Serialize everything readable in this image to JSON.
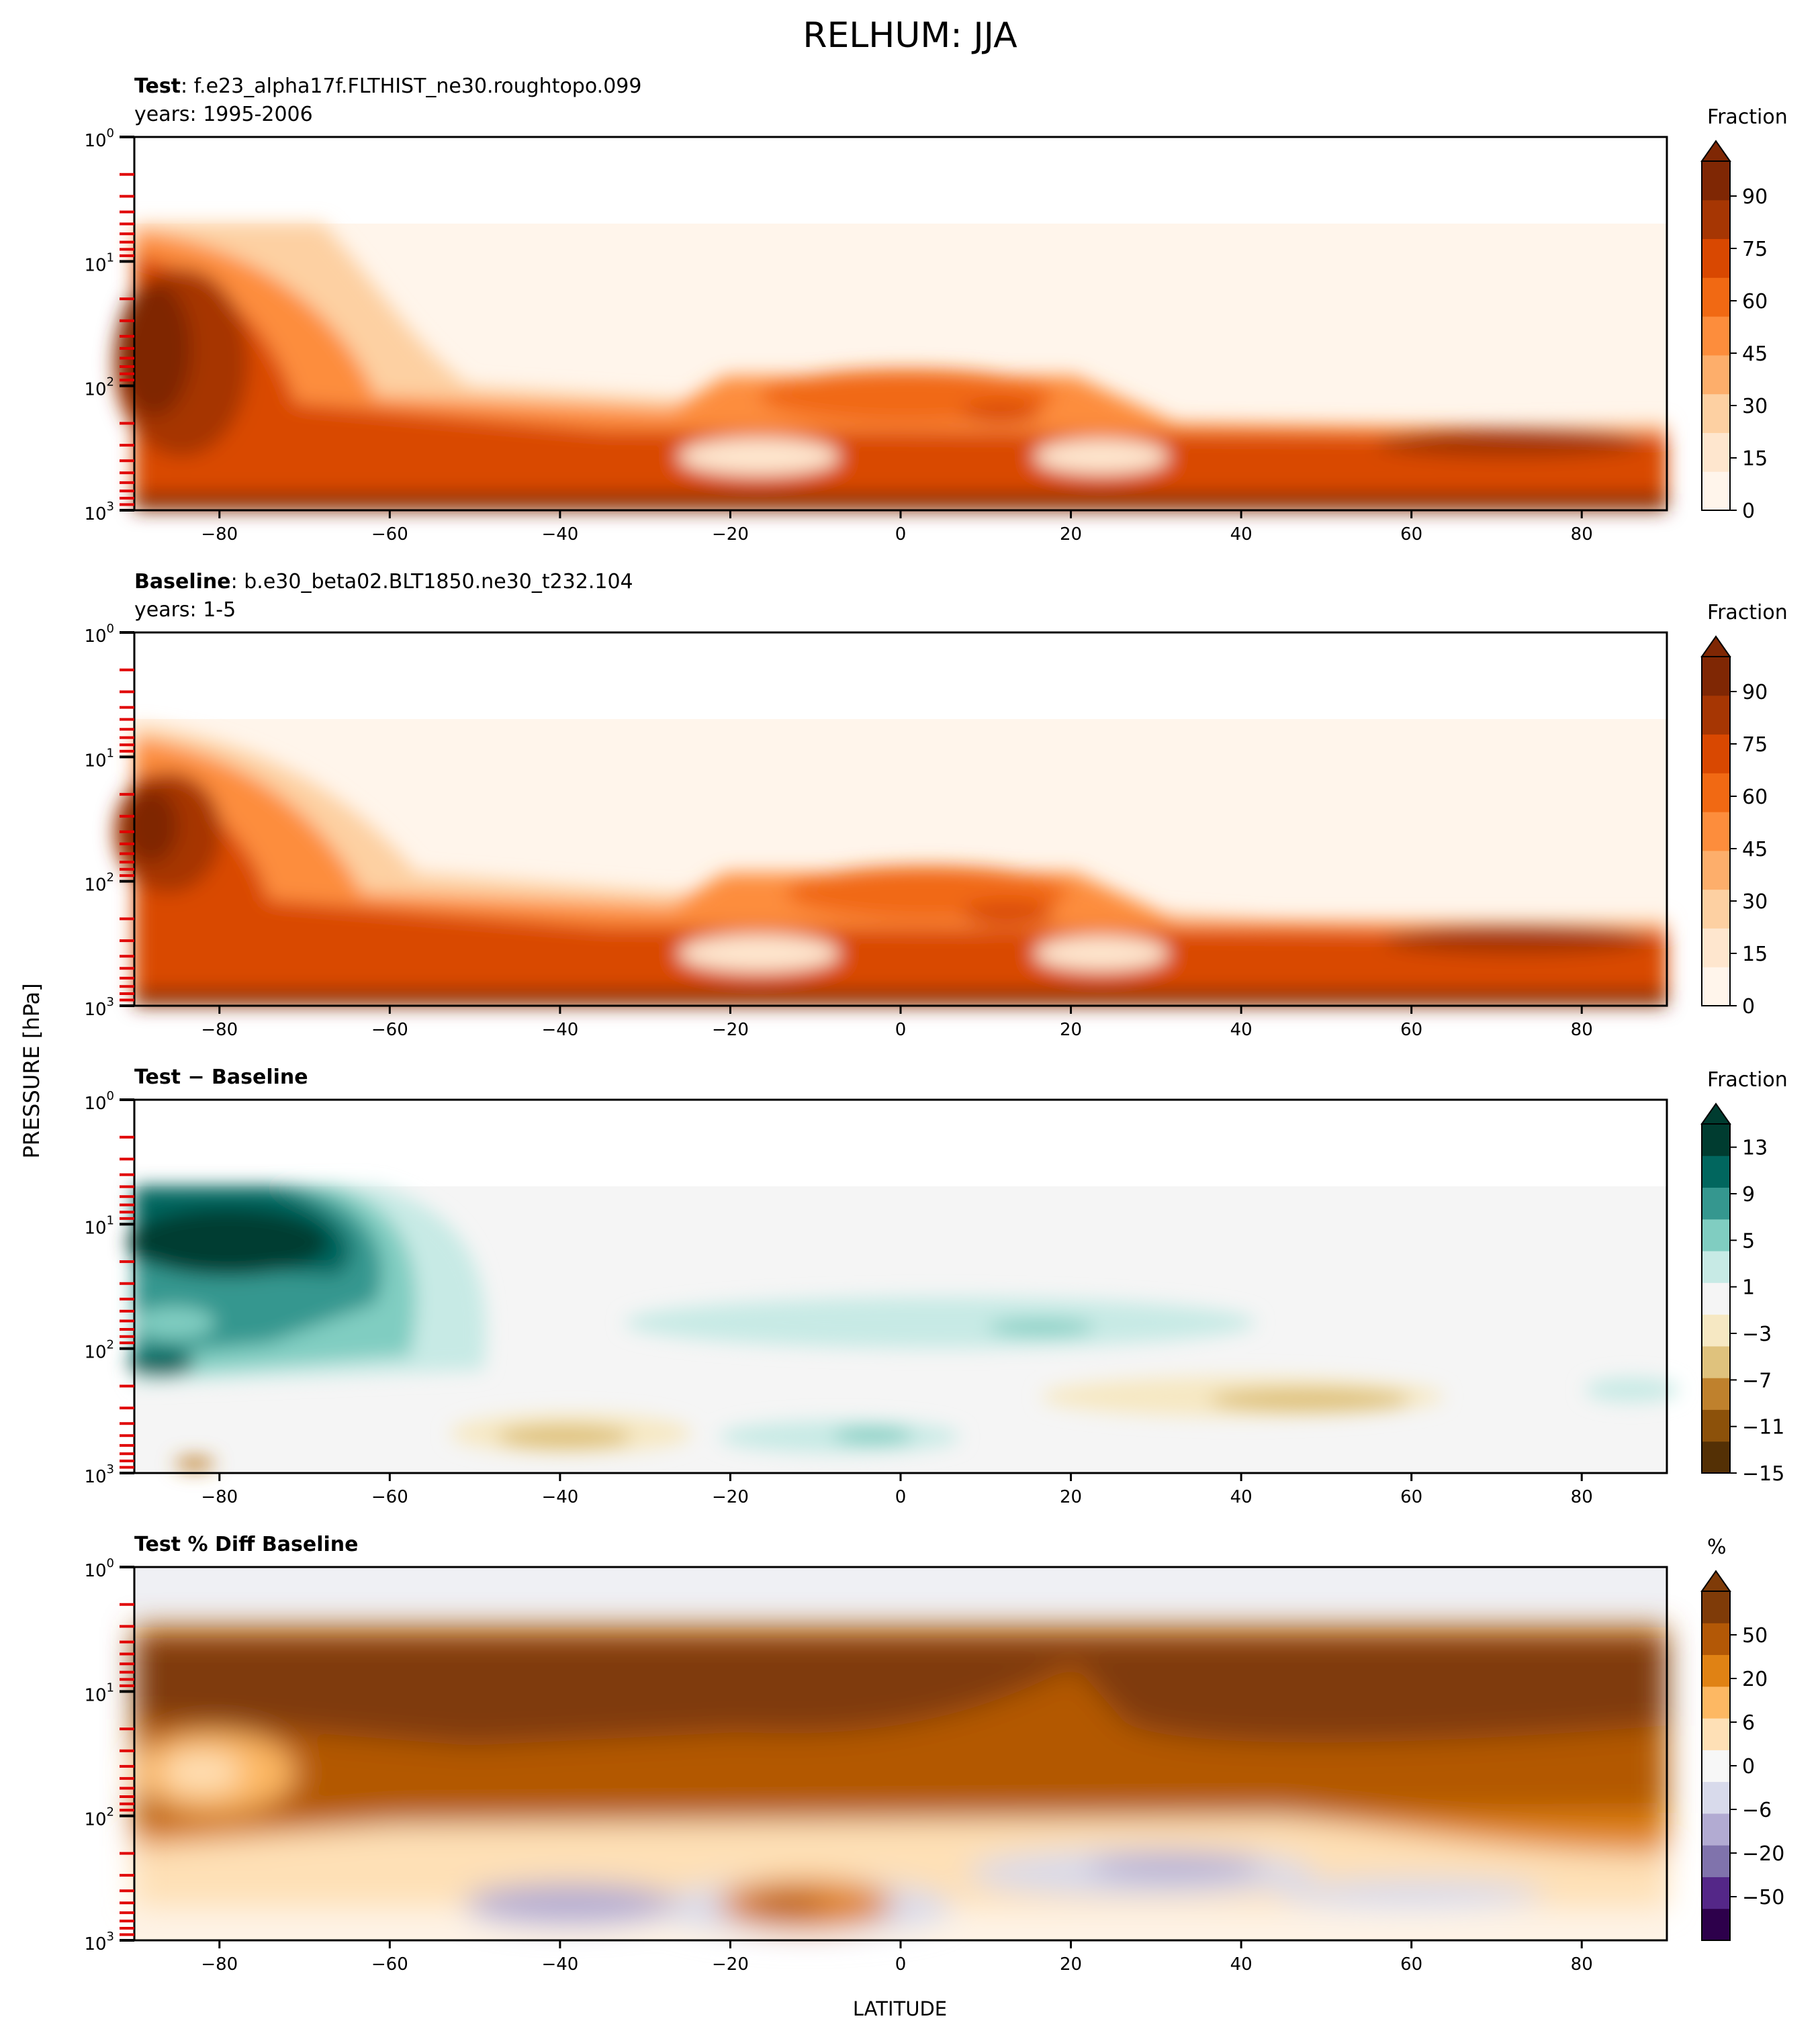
{
  "figure": {
    "title": "RELHUM: JJA",
    "ylabel": "PRESSURE [hPa]",
    "xlabel": "LATITUDE"
  },
  "panels": [
    {
      "id": "test",
      "title_bold": "Test",
      "title_rest": ": f.e23_alpha17f.FLTHIST_ne30.roughtopo.099",
      "subtitle": "years: 1995-2006",
      "colorbar": {
        "label": "Fraction",
        "ticks": [
          "0",
          "15",
          "30",
          "45",
          "60",
          "75",
          "90"
        ],
        "colors": [
          "#fff5eb",
          "#fee6ce",
          "#fdd0a2",
          "#fdae6b",
          "#fd8d3c",
          "#f16913",
          "#d94801",
          "#a63603",
          "#7f2704"
        ]
      }
    },
    {
      "id": "baseline",
      "title_bold": "Baseline",
      "title_rest": ": b.e30_beta02.BLT1850.ne30_t232.104",
      "subtitle": "years: 1-5",
      "colorbar": {
        "label": "Fraction",
        "ticks": [
          "0",
          "15",
          "30",
          "45",
          "60",
          "75",
          "90"
        ],
        "colors": [
          "#fff5eb",
          "#fee6ce",
          "#fdd0a2",
          "#fdae6b",
          "#fd8d3c",
          "#f16913",
          "#d94801",
          "#a63603",
          "#7f2704"
        ]
      }
    },
    {
      "id": "diff",
      "title_bold": "Test − Baseline",
      "title_rest": "",
      "subtitle": "",
      "colorbar": {
        "label": "Fraction",
        "ticks": [
          "13",
          "9",
          "5",
          "1",
          "−3",
          "−7",
          "−11",
          "−15"
        ],
        "colors": [
          "#543005",
          "#8c510a",
          "#bf812d",
          "#dfc27d",
          "#f6e8c3",
          "#f5f5f5",
          "#c7eae5",
          "#80cdc1",
          "#35978f",
          "#01665e",
          "#003c30"
        ]
      }
    },
    {
      "id": "pctdiff",
      "title_bold": "Test % Diff Baseline",
      "title_rest": "",
      "subtitle": "",
      "colorbar": {
        "label": "%",
        "ticks": [
          "50",
          "20",
          "6",
          "0",
          "−6",
          "−20",
          "−50"
        ],
        "colors": [
          "#2d004b",
          "#542788",
          "#8073ac",
          "#b2abd2",
          "#d8daeb",
          "#f7f7f7",
          "#fee0b6",
          "#fdb863",
          "#e08214",
          "#b35806",
          "#7f3b08"
        ]
      }
    }
  ],
  "axes": {
    "x_ticks": [
      "−80",
      "−60",
      "−40",
      "−20",
      "0",
      "20",
      "40",
      "60",
      "80"
    ],
    "y_ticks": [
      {
        "base": "10",
        "exp": "0"
      },
      {
        "base": "10",
        "exp": "1"
      },
      {
        "base": "10",
        "exp": "2"
      },
      {
        "base": "10",
        "exp": "3"
      }
    ]
  },
  "chart_data": [
    {
      "type": "heatmap",
      "title": "Test: f.e23_alpha17f.FLTHIST_ne30.roughtopo.099",
      "x": [
        -80,
        -60,
        -40,
        -20,
        0,
        20,
        40,
        60,
        80
      ],
      "xlim": [
        -90,
        90
      ],
      "ylim": [
        1000,
        1
      ],
      "y_scale": "log",
      "colorbar_range": [
        0,
        100
      ],
      "grid": false
    },
    {
      "type": "heatmap",
      "title": "Baseline: b.e30_beta02.BLT1850.ne30_t232.104",
      "x": [
        -80,
        -60,
        -40,
        -20,
        0,
        20,
        40,
        60,
        80
      ],
      "xlim": [
        -90,
        90
      ],
      "ylim": [
        1000,
        1
      ],
      "y_scale": "log",
      "colorbar_range": [
        0,
        100
      ],
      "grid": false
    },
    {
      "type": "heatmap",
      "title": "Test − Baseline",
      "xlim": [
        -90,
        90
      ],
      "ylim": [
        1000,
        1
      ],
      "y_scale": "log",
      "colorbar_range": [
        -15,
        15
      ],
      "grid": false
    },
    {
      "type": "heatmap",
      "title": "Test % Diff Baseline",
      "xlim": [
        -90,
        90
      ],
      "ylim": [
        1000,
        1
      ],
      "y_scale": "log",
      "colorbar_range": [
        -100,
        100
      ],
      "grid": false
    }
  ]
}
